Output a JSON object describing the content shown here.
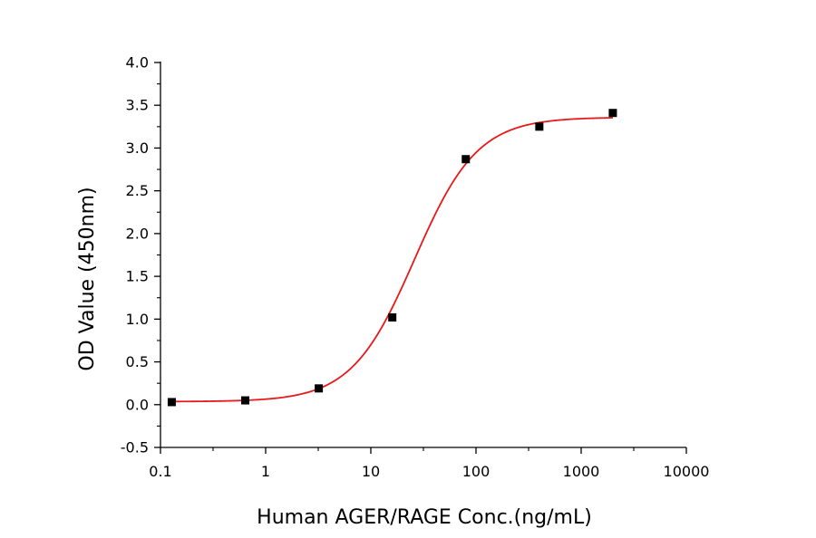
{
  "chart_data": {
    "type": "scatter",
    "title": "",
    "xlabel": "Human AGER/RAGE Conc.(ng/mL)",
    "ylabel": "OD Value (450nm)",
    "x_scale": "log",
    "xlim": [
      0.1,
      10000
    ],
    "ylim": [
      -0.5,
      4.0
    ],
    "x_ticks": [
      0.1,
      1,
      10,
      100,
      1000,
      10000
    ],
    "x_tick_labels": [
      "0.1",
      "1",
      "10",
      "100",
      "1000",
      "10000"
    ],
    "y_ticks": [
      -0.5,
      0.0,
      0.5,
      1.0,
      1.5,
      2.0,
      2.5,
      3.0,
      3.5,
      4.0
    ],
    "y_tick_labels": [
      "-0.5",
      "0.0",
      "0.5",
      "1.0",
      "1.5",
      "2.0",
      "2.5",
      "3.0",
      "3.5",
      "4.0"
    ],
    "grid": false,
    "legend": "none",
    "series": [
      {
        "x": [
          0.128,
          0.64,
          3.2,
          16,
          80,
          400,
          2000
        ],
        "y": [
          0.03,
          0.05,
          0.19,
          1.02,
          2.87,
          3.25,
          3.41
        ],
        "marker": "square",
        "color": "#000000"
      }
    ],
    "fit_curve": {
      "model": "4PL",
      "bottom": 0.035,
      "top": 3.36,
      "ec50": 26,
      "hill": 1.45,
      "x_range": [
        0.128,
        2000
      ],
      "color": "#e8191b"
    },
    "axis_color": "#000000"
  }
}
